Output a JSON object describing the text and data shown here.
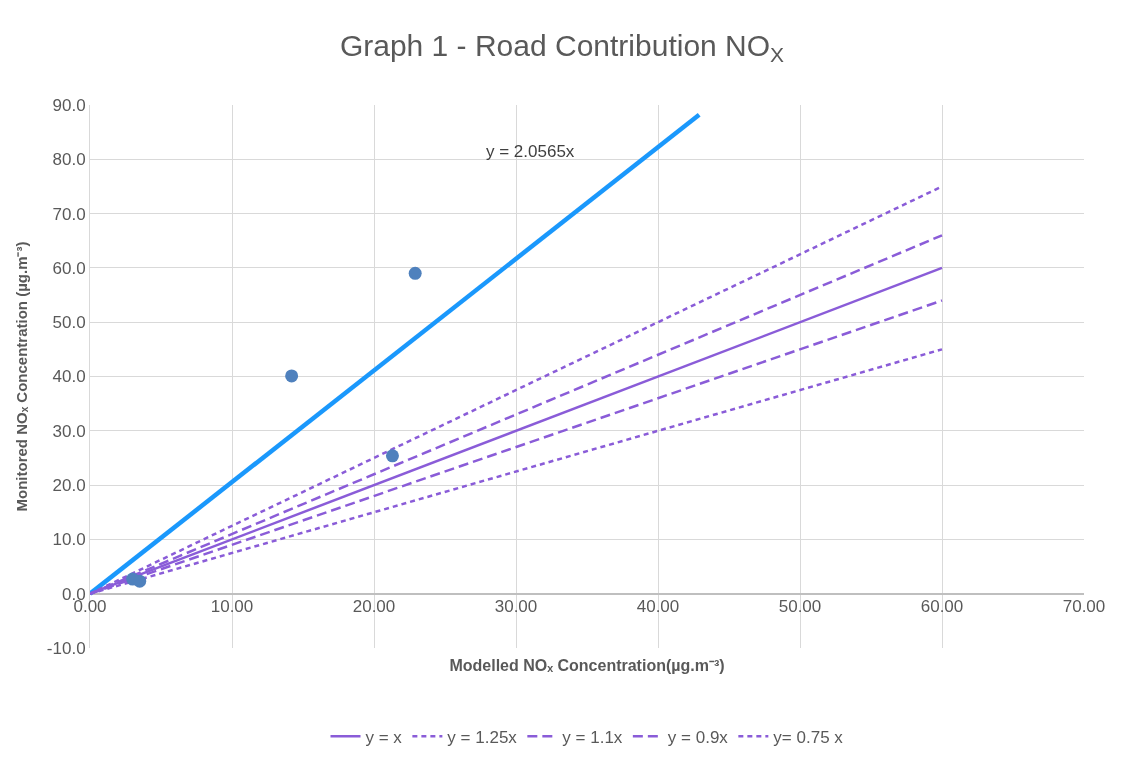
{
  "chart_data": {
    "type": "scatter",
    "title": "Graph 1 - Road Contribution NO$_{X}$",
    "xlabel": "Modelled NOₓ Concentration(µg.m⁻³)",
    "ylabel": "Monitored NOₓ Concentration (µg.m⁻³)",
    "xlim": [
      0,
      70
    ],
    "xticks": [
      {
        "value": 0,
        "label": "0.00"
      },
      {
        "value": 10,
        "label": "10.00"
      },
      {
        "value": 20,
        "label": "20.00"
      },
      {
        "value": 30,
        "label": "30.00"
      },
      {
        "value": 40,
        "label": "40.00"
      },
      {
        "value": 50,
        "label": "50.00"
      },
      {
        "value": 60,
        "label": "60.00"
      },
      {
        "value": 70,
        "label": "70.00"
      }
    ],
    "ylim": [
      -10,
      90
    ],
    "yticks": [
      {
        "value": -10,
        "label": "-10.0"
      },
      {
        "value": 0,
        "label": "0.0"
      },
      {
        "value": 10,
        "label": "10.0"
      },
      {
        "value": 20,
        "label": "20.0"
      },
      {
        "value": 30,
        "label": "30.0"
      },
      {
        "value": 40,
        "label": "40.0"
      },
      {
        "value": 50,
        "label": "50.0"
      },
      {
        "value": 60,
        "label": "60.0"
      },
      {
        "value": 70,
        "label": "70.0"
      },
      {
        "value": 80,
        "label": "80.0"
      },
      {
        "value": 90,
        "label": "90.0"
      }
    ],
    "grid": true,
    "legend": "bottom",
    "marker": "circle",
    "series": [
      {
        "color": "#4f81bd",
        "x": [
          3.0,
          3.5,
          14.2,
          21.3,
          22.9
        ],
        "values": [
          2.7,
          2.3,
          40.1,
          25.4,
          59.0
        ]
      },
      {
        "type": "line",
        "color": "#1a98fc",
        "marker": "none",
        "line_style": "solid",
        "x": [
          0,
          42.9
        ],
        "values": [
          0,
          88.2
        ]
      },
      {
        "type": "line",
        "name": "y = x",
        "color": "#8a5cd8",
        "marker": "none",
        "line_style": "solid",
        "x": [
          0,
          60
        ],
        "values": [
          0,
          60
        ]
      },
      {
        "type": "line",
        "name": "y = 1.25x",
        "color": "#8a5cd8",
        "marker": "none",
        "line_style": "dotted",
        "x": [
          0,
          60
        ],
        "values": [
          0,
          75
        ]
      },
      {
        "type": "line",
        "name": "y = 1.1x",
        "color": "#8a5cd8",
        "marker": "none",
        "line_style": "dashed",
        "x": [
          0,
          60
        ],
        "values": [
          0,
          66
        ]
      },
      {
        "type": "line",
        "name": "y = 0.9x",
        "color": "#8a5cd8",
        "marker": "none",
        "line_style": "dashed",
        "x": [
          0,
          60
        ],
        "values": [
          0,
          54
        ]
      },
      {
        "type": "line",
        "name": "y= 0.75 x",
        "color": "#8a5cd8",
        "marker": "none",
        "line_style": "dotted",
        "x": [
          0,
          60
        ],
        "values": [
          0,
          45
        ]
      }
    ],
    "annotations": [
      "y = 2.0565x"
    ]
  }
}
